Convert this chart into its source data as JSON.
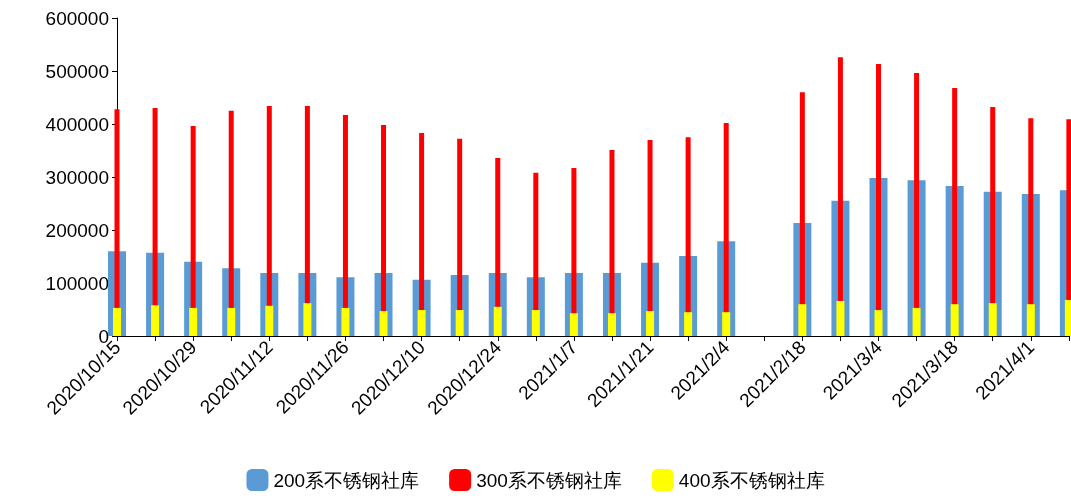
{
  "chart_data": {
    "type": "bar",
    "categories": [
      "2020/10/15",
      null,
      "2020/10/29",
      null,
      "2020/11/12",
      null,
      "2020/11/26",
      null,
      "2020/12/10",
      null,
      "2020/12/24",
      null,
      "2021/1/7",
      null,
      "2021/1/21",
      null,
      "2021/2/4",
      null,
      "2021/2/18",
      null,
      "2021/3/4",
      null,
      "2021/3/18",
      null,
      "2021/4/1",
      null
    ],
    "series": [
      {
        "name": "200系不锈钢社库",
        "color": "#5b9bd5",
        "values": [
          160000,
          157000,
          140000,
          128000,
          119000,
          119000,
          111000,
          119000,
          106000,
          115000,
          119000,
          111000,
          119000,
          119000,
          138000,
          151000,
          179000,
          null,
          213000,
          255000,
          298000,
          294000,
          283000,
          272000,
          268000,
          275000
        ]
      },
      {
        "name": "300系不锈钢社库",
        "color": "#ff0000",
        "values": [
          428000,
          430000,
          396000,
          425000,
          434000,
          434000,
          417000,
          398000,
          383000,
          372000,
          336000,
          308000,
          317000,
          351000,
          370000,
          375000,
          402000,
          null,
          460000,
          526000,
          513000,
          496000,
          468000,
          432000,
          411000,
          409000
        ]
      },
      {
        "name": "400系不锈钢社库",
        "color": "#ffff00",
        "values": [
          53000,
          58000,
          53000,
          53000,
          57000,
          62000,
          53000,
          47000,
          49000,
          49000,
          55000,
          49000,
          43000,
          43000,
          47000,
          45000,
          45000,
          null,
          60000,
          66000,
          49000,
          53000,
          60000,
          62000,
          60000,
          68000
        ]
      }
    ],
    "ylim": [
      0,
      600000
    ],
    "yticks": [
      0,
      100000,
      200000,
      300000,
      400000,
      500000,
      600000
    ],
    "grid": false,
    "legend": "bottom"
  }
}
